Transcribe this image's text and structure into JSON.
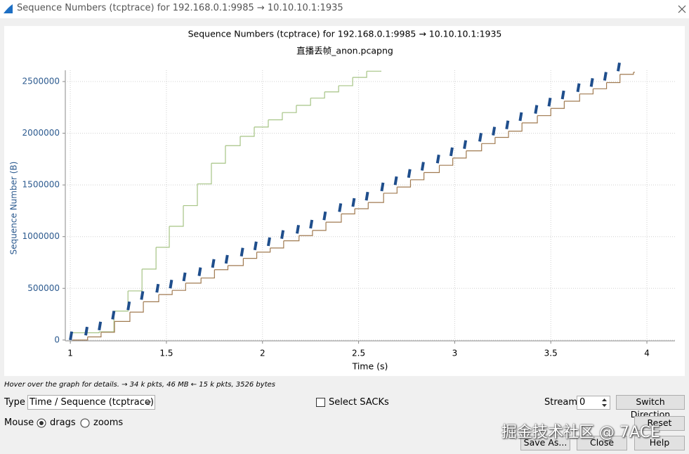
{
  "window": {
    "title": "Sequence Numbers (tcptrace) for 192.168.0.1:9985 → 10.10.10.1:1935"
  },
  "chart_data": {
    "type": "step",
    "title": "Sequence Numbers (tcptrace) for 192.168.0.1:9985 → 10.10.10.1:1935",
    "subtitle": "直播丢帧_anon.pcapng",
    "x_label": "Time (s)",
    "y_label": "Sequence Number (B)",
    "xlim": [
      0.974,
      4.146
    ],
    "ylim": [
      -8000,
      2609000
    ],
    "xticks": [
      1,
      1.5,
      2,
      2.5,
      3,
      3.5,
      4
    ],
    "yticks": [
      0,
      500000,
      1000000,
      1500000,
      2000000,
      2500000
    ],
    "grid": true,
    "series": [
      {
        "color": "#a6c485",
        "marker": "step",
        "x": [
          1.0,
          1.15,
          1.227,
          1.3,
          1.373,
          1.446,
          1.515,
          1.588,
          1.661,
          1.734,
          1.807,
          1.884,
          1.957,
          2.03,
          2.103,
          2.176,
          2.25,
          2.323,
          2.396,
          2.469,
          2.542,
          2.611
        ],
        "values": [
          70000,
          80000,
          280000,
          475000,
          686000,
          897000,
          1100000,
          1300000,
          1510000,
          1710000,
          1880000,
          1970000,
          2060000,
          2130000,
          2200000,
          2270000,
          2340000,
          2400000,
          2460000,
          2540000,
          2600000,
          2600000
        ]
      },
      {
        "color": "#a07a50",
        "marker": "step",
        "x": [
          1.01,
          1.09,
          1.16,
          1.23,
          1.31,
          1.38,
          1.46,
          1.53,
          1.6,
          1.68,
          1.75,
          1.82,
          1.9,
          1.97,
          2.04,
          2.11,
          2.19,
          2.26,
          2.33,
          2.41,
          2.48,
          2.55,
          2.63,
          2.7,
          2.77,
          2.84,
          2.92,
          2.99,
          3.06,
          3.14,
          3.21,
          3.28,
          3.35,
          3.43,
          3.5,
          3.57,
          3.65,
          3.72,
          3.79,
          3.86,
          3.93
        ],
        "values": [
          0,
          30000,
          75000,
          180000,
          270000,
          370000,
          440000,
          480000,
          550000,
          600000,
          680000,
          720000,
          790000,
          850000,
          890000,
          960000,
          1010000,
          1060000,
          1140000,
          1220000,
          1270000,
          1330000,
          1420000,
          1480000,
          1550000,
          1620000,
          1690000,
          1760000,
          1830000,
          1900000,
          1960000,
          2020000,
          2100000,
          2170000,
          2240000,
          2310000,
          2380000,
          2430000,
          2490000,
          2570000,
          2590000
        ]
      },
      {
        "color": "#1f4e8c",
        "marker": "segment",
        "x": [
          1.0,
          1.08,
          1.15,
          1.22,
          1.3,
          1.37,
          1.45,
          1.52,
          1.59,
          1.67,
          1.74,
          1.81,
          1.89,
          1.96,
          2.03,
          2.1,
          2.18,
          2.25,
          2.32,
          2.4,
          2.47,
          2.54,
          2.62,
          2.69,
          2.76,
          2.83,
          2.91,
          2.98,
          3.05,
          3.13,
          3.2,
          3.27,
          3.34,
          3.42,
          3.49,
          3.56,
          3.64,
          3.71,
          3.78,
          3.85
        ],
        "values": [
          0,
          45000,
          95000,
          200000,
          290000,
          390000,
          460000,
          500000,
          570000,
          620000,
          700000,
          740000,
          810000,
          870000,
          910000,
          980000,
          1030000,
          1080000,
          1160000,
          1240000,
          1290000,
          1350000,
          1440000,
          1500000,
          1570000,
          1640000,
          1710000,
          1780000,
          1850000,
          1920000,
          1980000,
          2040000,
          2120000,
          2190000,
          2260000,
          2330000,
          2400000,
          2450000,
          2510000,
          2600000
        ]
      }
    ]
  },
  "status": "Hover over the graph for details. → 34 k pkts, 46 MB ← 15 k pkts, 3526 bytes",
  "controls": {
    "type_label": "Type",
    "type_value": "Time / Sequence (tcptrace)",
    "select_sacks": "Select SACKs",
    "stream_label": "Stream",
    "stream_value": 0,
    "switch_direction": "Switch Direction",
    "mouse_label": "Mouse",
    "drags": "drags",
    "zooms": "zooms",
    "reset": "Reset",
    "save_as": "Save As...",
    "close": "Close",
    "help": "Help"
  },
  "watermark": "掘金技术社区 @ 7ACE"
}
